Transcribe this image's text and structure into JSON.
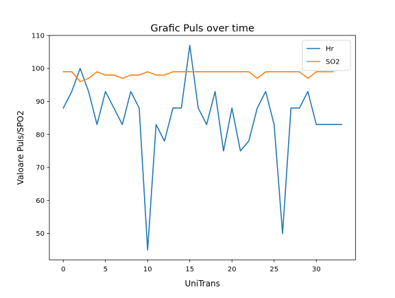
{
  "chart_data": {
    "type": "line",
    "title": "Grafic Puls over time",
    "xlabel": "UniTrans",
    "ylabel": "Valoare Puls/SPO2",
    "xlim": [
      -1.65,
      34.65
    ],
    "ylim": [
      42,
      110
    ],
    "xticks": [
      0,
      5,
      10,
      15,
      20,
      25,
      30
    ],
    "yticks": [
      50,
      60,
      70,
      80,
      90,
      100,
      110
    ],
    "grid": false,
    "legend_position": "top-right",
    "series": [
      {
        "name": "Hr",
        "color": "#1f77b4",
        "x": [
          0,
          1,
          2,
          3,
          4,
          5,
          6,
          7,
          8,
          9,
          10,
          11,
          12,
          13,
          14,
          15,
          16,
          17,
          18,
          19,
          20,
          21,
          22,
          23,
          24,
          25,
          26,
          27,
          28,
          29,
          30,
          31,
          32,
          33
        ],
        "values": [
          88,
          93,
          100,
          93,
          83,
          93,
          88,
          83,
          93,
          88,
          45,
          83,
          78,
          88,
          88,
          107,
          88,
          83,
          93,
          75,
          88,
          75,
          78,
          88,
          93,
          83,
          50,
          88,
          88,
          93,
          83,
          83,
          83,
          83
        ]
      },
      {
        "name": "SO2",
        "color": "#ff7f0e",
        "x": [
          0,
          1,
          2,
          3,
          4,
          5,
          6,
          7,
          8,
          9,
          10,
          11,
          12,
          13,
          14,
          15,
          16,
          17,
          18,
          19,
          20,
          21,
          22,
          23,
          24,
          25,
          26,
          27,
          28,
          29,
          30,
          31,
          32
        ],
        "values": [
          99,
          99,
          96,
          97,
          99,
          98,
          98,
          97,
          98,
          98,
          99,
          98,
          98,
          99,
          99,
          99,
          99,
          99,
          99,
          99,
          99,
          99,
          99,
          97,
          99,
          99,
          99,
          99,
          99,
          97,
          99,
          99,
          99
        ]
      }
    ]
  }
}
